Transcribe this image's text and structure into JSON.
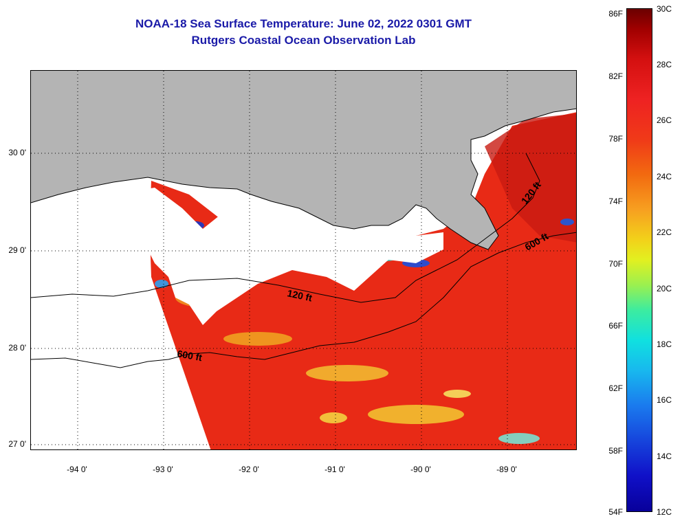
{
  "title": {
    "line1": "NOAA-18 Sea Surface Temperature:  June 02, 2022 0301 GMT",
    "line2": "Rutgers Coastal Ocean Observation Lab"
  },
  "map": {
    "lat_labels": [
      "30 0'",
      "29 0'",
      "28 0'",
      "27 0'"
    ],
    "lon_labels": [
      "-94 0'",
      "-93 0'",
      "-92 0'",
      "-91 0'",
      "-90 0'",
      "-89 0'"
    ],
    "contour_labels": [
      "120 ft",
      "600 ft",
      "120 ft",
      "600 ft"
    ],
    "colors": {
      "land": "#b4b4b4",
      "water_sst": "#e82a16",
      "no_data": "#ffffff"
    }
  },
  "colorbar": {
    "fahrenheit": [
      "86F",
      "82F",
      "78F",
      "74F",
      "70F",
      "66F",
      "62F",
      "58F",
      "54F"
    ],
    "celsius": [
      "30C",
      "28C",
      "26C",
      "24C",
      "22C",
      "20C",
      "18C",
      "16C",
      "14C",
      "12C"
    ]
  }
}
